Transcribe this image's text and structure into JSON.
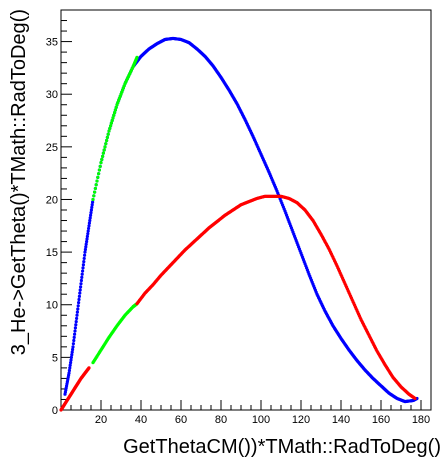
{
  "chart_data": {
    "type": "scatter",
    "xlabel": "GetThetaCM())*TMath::RadToDeg()",
    "ylabel": "3_He->GetTheta()*TMath::RadToDeg()",
    "xlim": [
      0,
      185
    ],
    "ylim": [
      0,
      38
    ],
    "x_ticks": [
      20,
      40,
      60,
      80,
      100,
      120,
      140,
      160,
      180
    ],
    "y_ticks": [
      0,
      5,
      10,
      15,
      20,
      25,
      30,
      35
    ],
    "grid": false,
    "series": [
      {
        "color": "#0000ff",
        "points": [
          [
            2,
            1.5
          ],
          [
            4,
            3.5
          ],
          [
            6,
            6
          ],
          [
            8,
            9
          ],
          [
            10,
            12
          ],
          [
            12,
            15
          ],
          [
            14,
            17.5
          ],
          [
            16,
            20
          ],
          [
            20,
            23.5
          ],
          [
            24,
            26.5
          ],
          [
            28,
            29
          ],
          [
            32,
            31
          ],
          [
            36,
            32.6
          ],
          [
            40,
            33.6
          ],
          [
            44,
            34.3
          ],
          [
            48,
            34.8
          ],
          [
            52,
            35.2
          ],
          [
            56,
            35.3
          ],
          [
            60,
            35.2
          ],
          [
            64,
            34.9
          ],
          [
            68,
            34.3
          ],
          [
            72,
            33.6
          ],
          [
            76,
            32.7
          ],
          [
            80,
            31.6
          ],
          [
            84,
            30.4
          ],
          [
            88,
            29.1
          ],
          [
            92,
            27.6
          ],
          [
            96,
            26.0
          ],
          [
            100,
            24.3
          ],
          [
            104,
            22.6
          ],
          [
            108,
            20.8
          ],
          [
            112,
            18.9
          ],
          [
            116,
            16.9
          ],
          [
            120,
            14.9
          ],
          [
            124,
            12.9
          ],
          [
            128,
            11.0
          ],
          [
            132,
            9.4
          ],
          [
            136,
            8.0
          ],
          [
            140,
            6.8
          ],
          [
            144,
            5.7
          ],
          [
            148,
            4.7
          ],
          [
            152,
            3.8
          ],
          [
            156,
            3.0
          ],
          [
            160,
            2.3
          ],
          [
            164,
            1.6
          ],
          [
            168,
            1.1
          ],
          [
            172,
            0.8
          ],
          [
            176,
            0.9
          ],
          [
            178,
            1.1
          ]
        ]
      },
      {
        "color": "#00ff00",
        "points": [
          [
            16,
            20
          ],
          [
            20,
            23.5
          ],
          [
            24,
            26.5
          ],
          [
            28,
            29
          ],
          [
            32,
            31
          ],
          [
            36,
            32.6
          ],
          [
            38,
            33.5
          ],
          [
            16,
            4.5
          ],
          [
            20,
            5.7
          ],
          [
            24,
            6.9
          ],
          [
            28,
            8.0
          ],
          [
            32,
            9.0
          ],
          [
            36,
            9.8
          ],
          [
            38,
            10.1
          ]
        ]
      },
      {
        "color": "#ff0000",
        "points": [
          [
            0,
            0
          ],
          [
            2,
            0.6
          ],
          [
            4,
            1.2
          ],
          [
            6,
            1.8
          ],
          [
            8,
            2.4
          ],
          [
            10,
            3.0
          ],
          [
            12,
            3.5
          ],
          [
            14,
            4.0
          ],
          [
            38,
            10.1
          ],
          [
            42,
            11.1
          ],
          [
            46,
            11.9
          ],
          [
            50,
            12.8
          ],
          [
            54,
            13.6
          ],
          [
            58,
            14.4
          ],
          [
            62,
            15.2
          ],
          [
            66,
            15.9
          ],
          [
            70,
            16.6
          ],
          [
            74,
            17.3
          ],
          [
            78,
            17.9
          ],
          [
            82,
            18.5
          ],
          [
            86,
            19.0
          ],
          [
            90,
            19.5
          ],
          [
            94,
            19.8
          ],
          [
            98,
            20.1
          ],
          [
            102,
            20.3
          ],
          [
            106,
            20.3
          ],
          [
            110,
            20.3
          ],
          [
            114,
            20.1
          ],
          [
            118,
            19.7
          ],
          [
            122,
            19.0
          ],
          [
            126,
            18.0
          ],
          [
            130,
            16.7
          ],
          [
            134,
            15.3
          ],
          [
            138,
            13.7
          ],
          [
            142,
            12.0
          ],
          [
            146,
            10.3
          ],
          [
            150,
            8.6
          ],
          [
            154,
            7.1
          ],
          [
            158,
            5.6
          ],
          [
            162,
            4.3
          ],
          [
            166,
            3.1
          ],
          [
            170,
            2.2
          ],
          [
            174,
            1.5
          ],
          [
            177,
            1.1
          ]
        ]
      }
    ]
  }
}
